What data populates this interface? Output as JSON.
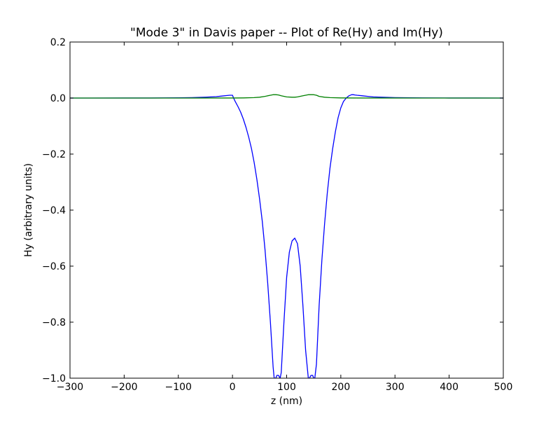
{
  "chart_data": {
    "type": "line",
    "title": "\"Mode 3\" in Davis paper -- Plot of Re(Hy) and Im(Hy)",
    "xlabel": "z (nm)",
    "ylabel": "Hy (arbitrary units)",
    "xlim": [
      -300,
      500
    ],
    "ylim": [
      -1.0,
      0.2
    ],
    "x_ticks": [
      -300,
      -200,
      -100,
      0,
      100,
      200,
      300,
      400,
      500
    ],
    "x_tick_labels": [
      "−300",
      "−200",
      "−100",
      "0",
      "100",
      "200",
      "300",
      "400",
      "500"
    ],
    "y_ticks": [
      0.2,
      0.0,
      -0.2,
      -0.4,
      -0.6,
      -0.8,
      -1.0
    ],
    "y_tick_labels": [
      "0.2",
      "0.0",
      "−0.2",
      "−0.4",
      "−0.6",
      "−0.8",
      "−1.0"
    ],
    "grid": false,
    "series": [
      {
        "color": "#0000ff",
        "x": [
          -300,
          -200,
          -150,
          -100,
          -75,
          -50,
          -40,
          -30,
          -20,
          -10,
          -5,
          0,
          2,
          5,
          10,
          15,
          20,
          25,
          30,
          35,
          40,
          45,
          50,
          55,
          60,
          65,
          70,
          75,
          77,
          80,
          82,
          85,
          88,
          90,
          95,
          100,
          105,
          110,
          115,
          120,
          125,
          130,
          135,
          140,
          142,
          145,
          148,
          150,
          152,
          155,
          160,
          165,
          170,
          175,
          180,
          185,
          190,
          195,
          200,
          205,
          210,
          215,
          220,
          223,
          226,
          230,
          240,
          250,
          260,
          275,
          300,
          350,
          400,
          450,
          500
        ],
        "y": [
          0.0,
          0.0001,
          0.0002,
          0.0008,
          0.0015,
          0.003,
          0.004,
          0.005,
          0.007,
          0.009,
          0.01,
          0.01,
          0.0,
          -0.012,
          -0.03,
          -0.05,
          -0.075,
          -0.105,
          -0.14,
          -0.18,
          -0.23,
          -0.29,
          -0.36,
          -0.44,
          -0.54,
          -0.66,
          -0.8,
          -0.96,
          -1.0,
          -1.0,
          -0.99,
          -0.99,
          -1.0,
          -0.98,
          -0.8,
          -0.64,
          -0.55,
          -0.51,
          -0.5,
          -0.52,
          -0.6,
          -0.74,
          -0.9,
          -1.0,
          -1.0,
          -0.99,
          -0.99,
          -1.0,
          -1.0,
          -0.95,
          -0.74,
          -0.58,
          -0.45,
          -0.34,
          -0.25,
          -0.18,
          -0.12,
          -0.07,
          -0.035,
          -0.012,
          0.0,
          0.008,
          0.012,
          0.012,
          0.011,
          0.01,
          0.008,
          0.006,
          0.004,
          0.003,
          0.0015,
          0.0005,
          0.0002,
          0.0001,
          0.0
        ]
      },
      {
        "color": "#008000",
        "x": [
          -300,
          -100,
          -50,
          0,
          20,
          40,
          50,
          60,
          70,
          75,
          80,
          85,
          90,
          100,
          110,
          115,
          120,
          130,
          140,
          145,
          150,
          155,
          160,
          170,
          180,
          200,
          230,
          280,
          350,
          500
        ],
        "y": [
          0.0,
          0.0,
          0.0001,
          0.0002,
          0.0005,
          0.0015,
          0.003,
          0.006,
          0.01,
          0.012,
          0.012,
          0.011,
          0.008,
          0.004,
          0.003,
          0.003,
          0.004,
          0.008,
          0.012,
          0.012,
          0.012,
          0.01,
          0.006,
          0.003,
          0.0015,
          0.0005,
          0.0002,
          0.0001,
          0.0,
          0.0
        ]
      }
    ]
  }
}
